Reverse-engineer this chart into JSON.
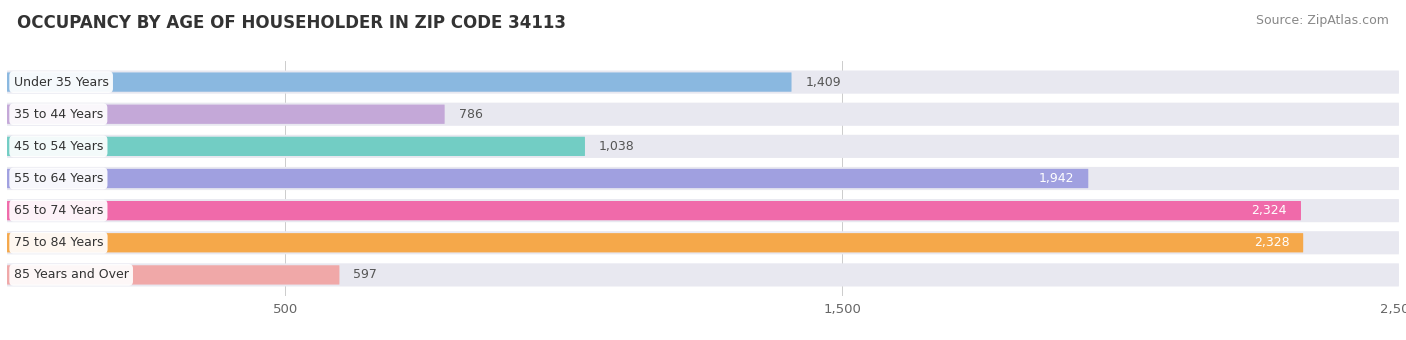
{
  "title": "OCCUPANCY BY AGE OF HOUSEHOLDER IN ZIP CODE 34113",
  "source": "Source: ZipAtlas.com",
  "categories": [
    "Under 35 Years",
    "35 to 44 Years",
    "45 to 54 Years",
    "55 to 64 Years",
    "65 to 74 Years",
    "75 to 84 Years",
    "85 Years and Over"
  ],
  "values": [
    1409,
    786,
    1038,
    1942,
    2324,
    2328,
    597
  ],
  "bar_colors": [
    "#8ab8e0",
    "#c4a8d8",
    "#72cdc4",
    "#a0a0e0",
    "#f06aaa",
    "#f5a84a",
    "#f0a8a8"
  ],
  "bar_bg_color": "#e8e8f0",
  "xlim": [
    0,
    2500
  ],
  "xticks": [
    500,
    1500,
    2500
  ],
  "title_fontsize": 12,
  "source_fontsize": 9,
  "tick_fontsize": 9.5,
  "bar_label_fontsize": 9,
  "category_fontsize": 9,
  "background_color": "#ffffff"
}
